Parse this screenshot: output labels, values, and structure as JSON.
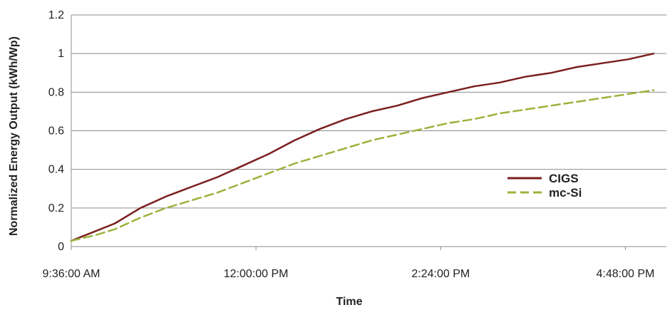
{
  "chart_data": {
    "type": "line",
    "title": "",
    "xlabel": "Time",
    "ylabel": "Normalized Energy Output (kWh/Wp)",
    "ylim": [
      0,
      1.2
    ],
    "yticks": [
      "0",
      "0.2",
      "0.4",
      "0.6",
      "0.8",
      "1",
      "1.2"
    ],
    "xlim": [
      "9:36:00 AM",
      "5:20:00 PM"
    ],
    "xticks": [
      "9:36:00 AM",
      "12:00:00 PM",
      "2:24:00 PM",
      "4:48:00 PM"
    ],
    "grid": "horizontal",
    "legend_position": "right",
    "series": [
      {
        "name": "CIGS",
        "style": "solid",
        "color": "#7b1f1f",
        "x": [
          "9:36:00 AM",
          "9:55:00 AM",
          "10:10:00 AM",
          "10:30:00 AM",
          "10:50:00 AM",
          "11:10:00 AM",
          "11:30:00 AM",
          "11:50:00 AM",
          "12:10:00 PM",
          "12:30:00 PM",
          "12:50:00 PM",
          "1:10:00 PM",
          "1:30:00 PM",
          "1:50:00 PM",
          "2:10:00 PM",
          "2:30:00 PM",
          "2:50:00 PM",
          "3:10:00 PM",
          "3:30:00 PM",
          "3:50:00 PM",
          "4:10:00 PM",
          "4:30:00 PM",
          "4:50:00 PM",
          "5:10:00 PM"
        ],
        "values": [
          0.03,
          0.08,
          0.12,
          0.2,
          0.26,
          0.31,
          0.36,
          0.42,
          0.48,
          0.55,
          0.61,
          0.66,
          0.7,
          0.73,
          0.77,
          0.8,
          0.83,
          0.85,
          0.88,
          0.9,
          0.93,
          0.95,
          0.97,
          1.0
        ]
      },
      {
        "name": "mc-Si",
        "style": "dashed",
        "color": "#9ab33c",
        "x": [
          "9:36:00 AM",
          "9:55:00 AM",
          "10:10:00 AM",
          "10:30:00 AM",
          "10:50:00 AM",
          "11:10:00 AM",
          "11:30:00 AM",
          "11:50:00 AM",
          "12:10:00 PM",
          "12:30:00 PM",
          "12:50:00 PM",
          "1:10:00 PM",
          "1:30:00 PM",
          "1:50:00 PM",
          "2:10:00 PM",
          "2:30:00 PM",
          "2:50:00 PM",
          "3:10:00 PM",
          "3:30:00 PM",
          "3:50:00 PM",
          "4:10:00 PM",
          "4:30:00 PM",
          "4:50:00 PM",
          "5:10:00 PM"
        ],
        "values": [
          0.03,
          0.06,
          0.09,
          0.15,
          0.2,
          0.24,
          0.28,
          0.33,
          0.38,
          0.43,
          0.47,
          0.51,
          0.55,
          0.58,
          0.61,
          0.64,
          0.66,
          0.69,
          0.71,
          0.73,
          0.75,
          0.77,
          0.79,
          0.81
        ]
      }
    ]
  }
}
